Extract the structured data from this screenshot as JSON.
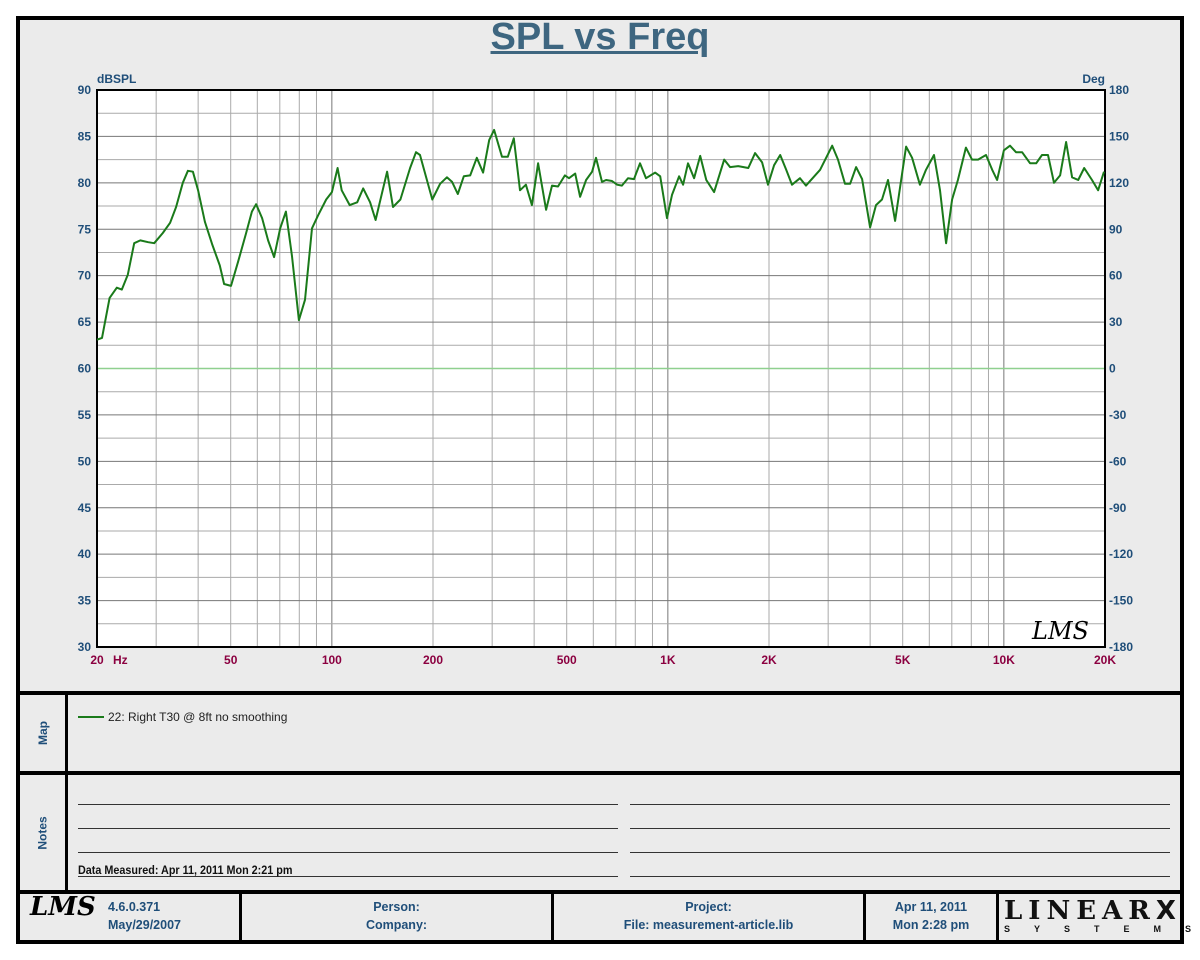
{
  "chart_data": {
    "type": "line",
    "title": "SPL vs Freq",
    "ylabel_left": "dBSPL",
    "ylabel_right": "Deg",
    "x_scale": "log",
    "xlim": [
      20,
      20000
    ],
    "ylim": [
      30,
      90
    ],
    "ylim_right": [
      -180,
      180
    ],
    "grid": true,
    "x_ticks": [
      {
        "v": 20,
        "label": "20"
      },
      {
        "v": 50,
        "label": "50"
      },
      {
        "v": 100,
        "label": "100"
      },
      {
        "v": 200,
        "label": "200"
      },
      {
        "v": 500,
        "label": "500"
      },
      {
        "v": 1000,
        "label": "1K"
      },
      {
        "v": 2000,
        "label": "2K"
      },
      {
        "v": 5000,
        "label": "5K"
      },
      {
        "v": 10000,
        "label": "10K"
      },
      {
        "v": 20000,
        "label": "20K"
      }
    ],
    "x_unit": "Hz",
    "y_ticks": [
      90,
      85,
      80,
      75,
      70,
      65,
      60,
      55,
      50,
      45,
      40,
      35,
      30
    ],
    "y_ticks_right": [
      180,
      150,
      120,
      90,
      60,
      30,
      0,
      -30,
      -60,
      -90,
      -120,
      -150,
      -180
    ],
    "reference_line_right": 0,
    "series": [
      {
        "name": "22: Right T30 @ 8ft no smoothing",
        "color": "#1a7a1a",
        "x": [
          20,
          20.7,
          21.8,
          22.9,
          23.7,
          24.7,
          25.8,
          26.9,
          28.4,
          29.6,
          31.4,
          33,
          34.4,
          36,
          37.3,
          38.6,
          40,
          41.9,
          44,
          46.4,
          47.8,
          50.1,
          52.6,
          55.5,
          57.8,
          59.5,
          62,
          64.6,
          67.3,
          70.2,
          73,
          76.1,
          79.8,
          83.2,
          87.3,
          91,
          96.2,
          100,
          104,
          107,
          113,
          119,
          124,
          130,
          135,
          146,
          152,
          160,
          171,
          178,
          183,
          199,
          210,
          220,
          228,
          237,
          247,
          258,
          270,
          282,
          294,
          304,
          321,
          334,
          348,
          363,
          378,
          394,
          411,
          434,
          452,
          471,
          494,
          508,
          530,
          548,
          571,
          595,
          611,
          637,
          655,
          682,
          706,
          730,
          761,
          793,
          826,
          861,
          916,
          949,
          994,
          1029,
          1080,
          1110,
          1148,
          1197,
          1248,
          1301,
          1373,
          1471,
          1532,
          1619,
          1735,
          1818,
          1907,
          1987,
          2071,
          2159,
          2250,
          2341,
          2474,
          2578,
          2839,
          3084,
          3210,
          3367,
          3486,
          3632,
          3786,
          4000,
          4163,
          4339,
          4522,
          4745,
          5118,
          5334,
          5625,
          5864,
          6195,
          6456,
          6730,
          7015,
          7300,
          7710,
          8040,
          8380,
          8850,
          9230,
          9550,
          10000,
          10430,
          10870,
          11330,
          11970,
          12480,
          12990,
          13530,
          14100,
          14700,
          15320,
          15960,
          16640,
          17340,
          18300,
          19080,
          19870
        ],
        "y": [
          63.1,
          63.3,
          67.6,
          68.7,
          68.5,
          70.1,
          73.5,
          73.8,
          73.6,
          73.5,
          74.6,
          75.7,
          77.4,
          80.0,
          81.3,
          81.2,
          79.2,
          75.8,
          73.4,
          71.1,
          69.1,
          68.9,
          71.5,
          74.5,
          76.9,
          77.7,
          76.2,
          73.8,
          72.0,
          75.1,
          76.9,
          72.1,
          65.2,
          67.4,
          75.1,
          76.5,
          78.2,
          79.0,
          81.6,
          79.2,
          77.6,
          77.9,
          79.4,
          77.9,
          76.0,
          81.2,
          77.4,
          78.2,
          81.6,
          83.3,
          83.0,
          78.2,
          79.9,
          80.6,
          80.1,
          78.8,
          80.7,
          80.8,
          82.7,
          81.1,
          84.6,
          85.7,
          82.8,
          82.8,
          84.8,
          79.2,
          79.8,
          77.6,
          82.1,
          77.1,
          79.7,
          79.6,
          80.8,
          80.5,
          81.0,
          78.5,
          80.3,
          81.2,
          82.7,
          80.1,
          80.3,
          80.2,
          79.8,
          79.7,
          80.5,
          80.4,
          82.1,
          80.5,
          81.1,
          80.7,
          76.2,
          78.7,
          80.7,
          79.8,
          82.1,
          80.5,
          82.9,
          80.3,
          79.0,
          82.5,
          81.7,
          81.8,
          81.6,
          83.2,
          82.2,
          79.8,
          81.9,
          83.0,
          81.4,
          79.8,
          80.5,
          79.7,
          81.4,
          84.0,
          82.5,
          79.9,
          79.9,
          81.7,
          80.4,
          75.2,
          77.6,
          78.2,
          80.3,
          75.9,
          83.9,
          82.7,
          79.8,
          81.4,
          83.0,
          79.2,
          73.5,
          78.2,
          80.3,
          83.8,
          82.5,
          82.5,
          83.0,
          81.4,
          80.3,
          83.5,
          84.0,
          83.3,
          83.3,
          82.1,
          82.1,
          83.0,
          83.0,
          80.0,
          80.8,
          84.4,
          80.6,
          80.3,
          81.6,
          80.3,
          79.2,
          81.2
        ]
      }
    ]
  },
  "map": {
    "label": "Map",
    "legend": "22: Right T30 @ 8ft no smoothing"
  },
  "notes": {
    "label": "Notes",
    "measured": "Data Measured: Apr 11, 2011  Mon  2:21 pm"
  },
  "footer": {
    "logo": "LMS",
    "version": "4.6.0.371",
    "version_date": "May/29/2007",
    "person": "Person:",
    "company": "Company:",
    "project": "Project:",
    "file": "File: measurement-article.lib",
    "date": "Apr 11, 2011",
    "time": "Mon  2:28 pm",
    "brand": "LINEAR",
    "brand_x": "X",
    "brand_sub": "SYSTEMS"
  },
  "watermark": "LMS"
}
